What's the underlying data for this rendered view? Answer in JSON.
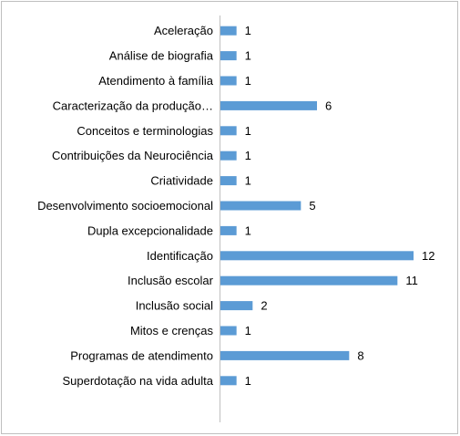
{
  "chart_data": {
    "type": "bar",
    "orientation": "horizontal",
    "categories": [
      "Aceleração",
      "Análise de biografia",
      "Atendimento à família",
      "Caracterização da produção…",
      "Conceitos e terminologias",
      "Contribuições da Neurociência",
      "Criatividade",
      "Desenvolvimento socioemocional",
      "Dupla excepcionalidade",
      "Identificação",
      "Inclusão escolar",
      "Inclusão social",
      "Mitos e crenças",
      "Programas de atendimento",
      "Superdotação na vida adulta"
    ],
    "values": [
      1,
      1,
      1,
      6,
      1,
      1,
      1,
      5,
      1,
      12,
      11,
      2,
      1,
      8,
      1
    ],
    "data_labels": [
      "1",
      "1",
      "1",
      "6",
      "1",
      "1",
      "1",
      "5",
      "1",
      "12",
      "11",
      "2",
      "1",
      "8",
      "1"
    ],
    "xlim": [
      0,
      12
    ],
    "bar_color": "#5b9bd5",
    "grid": false,
    "legend": false
  }
}
